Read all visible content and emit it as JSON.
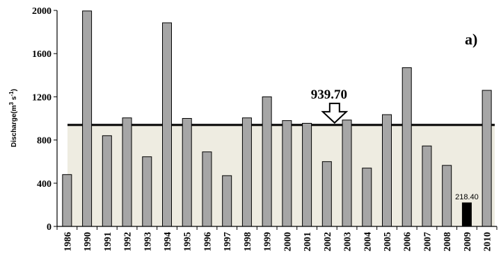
{
  "chart_data": {
    "type": "bar",
    "panel_label": "a)",
    "ylabel_parts": [
      "Discharge(m",
      "3",
      " s",
      "-1",
      ")"
    ],
    "ylim": [
      0,
      2000
    ],
    "yticks": [
      "0",
      "400",
      "800",
      "1200",
      "1600",
      "2000"
    ],
    "categories": [
      "1986",
      "1990",
      "1991",
      "1992",
      "1993",
      "1994",
      "1995",
      "1996",
      "1997",
      "1998",
      "1999",
      "2000",
      "2001",
      "2002",
      "2003",
      "2004",
      "2005",
      "2006",
      "2007",
      "2008",
      "2009",
      "2010"
    ],
    "values": [
      480,
      1995,
      840,
      1005,
      645,
      1885,
      1000,
      690,
      470,
      1005,
      1200,
      980,
      955,
      600,
      985,
      540,
      1035,
      1470,
      745,
      565,
      218.4,
      1260
    ],
    "highlight_index": 20,
    "highlight_label": "218.40",
    "mean_value": 939.7,
    "mean_label": "939.70",
    "mean_arrow_category_index": 13,
    "colors": {
      "bar": "#a6a6a6",
      "highlight_bar": "#000000",
      "mean_fill": "#eeece1",
      "axis": "#000000"
    }
  }
}
